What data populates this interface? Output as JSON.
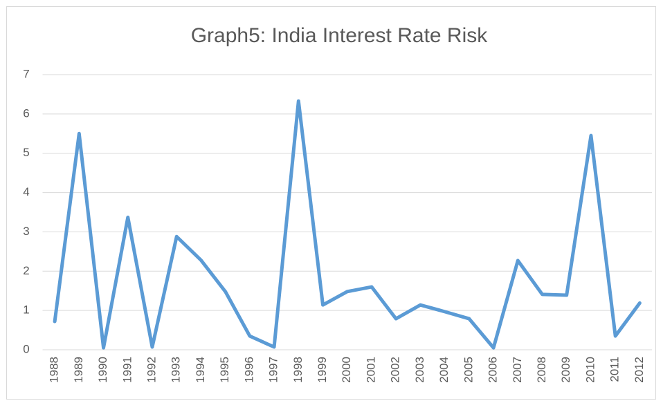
{
  "chart_data": {
    "type": "line",
    "title": "Graph5: India Interest Rate Risk",
    "categories": [
      "1988",
      "1989",
      "1990",
      "1991",
      "1992",
      "1993",
      "1994",
      "1995",
      "1996",
      "1997",
      "1998",
      "1999",
      "2000",
      "2001",
      "2002",
      "2003",
      "2004",
      "2005",
      "2006",
      "2007",
      "2008",
      "2009",
      "2010",
      "2011",
      "2012"
    ],
    "values": [
      0.72,
      5.5,
      0.05,
      3.37,
      0.07,
      2.88,
      2.28,
      1.48,
      0.35,
      0.07,
      6.33,
      1.14,
      1.48,
      1.6,
      0.79,
      1.14,
      0.97,
      0.79,
      0.05,
      2.27,
      1.41,
      1.39,
      5.45,
      0.35,
      1.19
    ],
    "color": "#5b9bd5",
    "ylim": [
      0,
      7
    ],
    "yticks": [
      0,
      1,
      2,
      3,
      4,
      5,
      6,
      7
    ],
    "grid": true
  }
}
